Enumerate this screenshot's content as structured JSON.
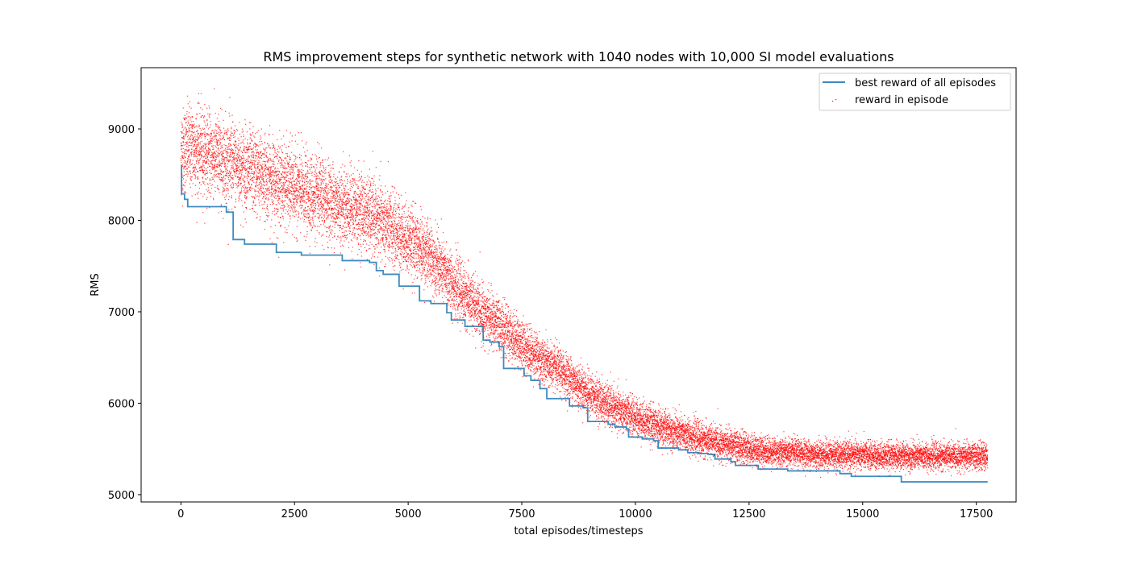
{
  "chart_data": {
    "type": "scatter+step",
    "title": "RMS improvement steps for synthetic network with 1040 nodes with 10,000 SI model evaluations",
    "xlabel": "total episodes/timesteps",
    "ylabel": "RMS",
    "xlim": [
      -875,
      18375
    ],
    "ylim": [
      4920,
      9670
    ],
    "xticks": [
      0,
      2500,
      5000,
      7500,
      10000,
      12500,
      15000,
      17500
    ],
    "xtick_labels": [
      "0",
      "2500",
      "5000",
      "7500",
      "10000",
      "12500",
      "15000",
      "17500"
    ],
    "yticks": [
      5000,
      6000,
      7000,
      8000,
      9000
    ],
    "ytick_labels": [
      "5000",
      "6000",
      "7000",
      "8000",
      "9000"
    ],
    "legend_position": "upper-right",
    "grid": false,
    "series": [
      {
        "name": "best reward of all episodes",
        "kind": "step",
        "color": "#1f77b4",
        "points": [
          [
            0,
            8600
          ],
          [
            15,
            8290
          ],
          [
            80,
            8230
          ],
          [
            150,
            8150
          ],
          [
            1000,
            8090
          ],
          [
            1150,
            7790
          ],
          [
            1400,
            7740
          ],
          [
            2100,
            7650
          ],
          [
            2650,
            7620
          ],
          [
            3550,
            7560
          ],
          [
            4150,
            7540
          ],
          [
            4300,
            7450
          ],
          [
            4450,
            7410
          ],
          [
            4800,
            7280
          ],
          [
            5250,
            7120
          ],
          [
            5500,
            7090
          ],
          [
            5850,
            6990
          ],
          [
            5950,
            6910
          ],
          [
            6250,
            6840
          ],
          [
            6650,
            6690
          ],
          [
            6800,
            6670
          ],
          [
            7000,
            6620
          ],
          [
            7100,
            6380
          ],
          [
            7550,
            6300
          ],
          [
            7700,
            6250
          ],
          [
            7900,
            6160
          ],
          [
            8050,
            6050
          ],
          [
            8550,
            5970
          ],
          [
            8850,
            5950
          ],
          [
            8950,
            5800
          ],
          [
            9400,
            5770
          ],
          [
            9550,
            5740
          ],
          [
            9800,
            5720
          ],
          [
            9850,
            5630
          ],
          [
            10150,
            5610
          ],
          [
            10400,
            5590
          ],
          [
            10500,
            5510
          ],
          [
            10950,
            5490
          ],
          [
            11150,
            5460
          ],
          [
            11400,
            5450
          ],
          [
            11600,
            5440
          ],
          [
            11750,
            5390
          ],
          [
            12100,
            5360
          ],
          [
            12200,
            5320
          ],
          [
            12700,
            5280
          ],
          [
            13350,
            5260
          ],
          [
            14500,
            5230
          ],
          [
            14750,
            5200
          ],
          [
            15850,
            5140
          ],
          [
            17750,
            5140
          ]
        ]
      },
      {
        "name": "reward in episode",
        "kind": "scatter",
        "color": "#ff0000",
        "n_points": 17750,
        "x_range": [
          0,
          17750
        ],
        "mean_curve": {
          "x": [
            0,
            200,
            1000,
            2000,
            3000,
            4000,
            4500,
            5000,
            5500,
            6000,
            6500,
            7000,
            7500,
            8000,
            8500,
            9000,
            9500,
            10000,
            10500,
            11000,
            11500,
            12000,
            12500,
            13000,
            14000,
            15000,
            16000,
            17750
          ],
          "y": [
            8750,
            8800,
            8650,
            8450,
            8250,
            8100,
            7950,
            7800,
            7600,
            7300,
            7050,
            6850,
            6650,
            6450,
            6300,
            6100,
            5950,
            5850,
            5750,
            5670,
            5600,
            5550,
            5500,
            5470,
            5440,
            5430,
            5420,
            5420
          ]
        },
        "spread_sd": {
          "x": [
            0,
            2000,
            4500,
            6000,
            8000,
            10000,
            12000,
            13000,
            17750
          ],
          "y": [
            230,
            220,
            200,
            160,
            120,
            100,
            85,
            75,
            70
          ]
        }
      }
    ]
  }
}
